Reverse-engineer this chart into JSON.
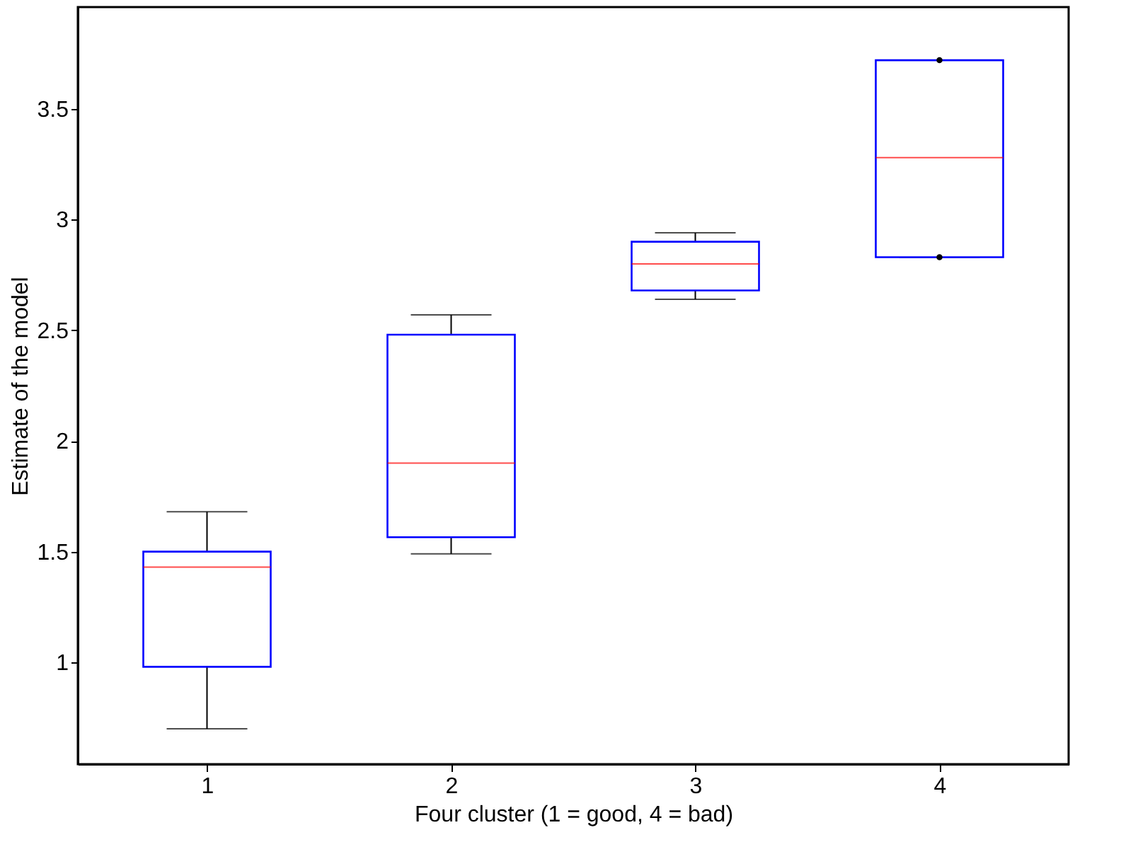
{
  "chart_data": {
    "type": "box",
    "xlabel": "Four cluster (1 = good, 4 = bad)",
    "ylabel": "Estimate of the model",
    "categories": [
      "1",
      "2",
      "3",
      "4"
    ],
    "series": [
      {
        "color": "#0000ff",
        "boxes": [
          {
            "low": 0.7,
            "q1": 0.98,
            "median": 1.43,
            "q3": 1.5,
            "high": 1.68
          },
          {
            "low": 1.49,
            "q1": 1.565,
            "median": 1.9,
            "q3": 2.48,
            "high": 2.57
          },
          {
            "low": 2.64,
            "q1": 2.68,
            "median": 2.8,
            "q3": 2.9,
            "high": 2.94
          },
          {
            "low": 2.83,
            "q1": 2.83,
            "median": 3.28,
            "q3": 3.72,
            "high": 3.72,
            "outliers": [
              3.72,
              2.83
            ]
          }
        ]
      }
    ],
    "ylim": [
      0.54,
      3.96
    ],
    "yticks": [
      1,
      1.5,
      2,
      2.5,
      3,
      3.5
    ],
    "grid": false
  }
}
